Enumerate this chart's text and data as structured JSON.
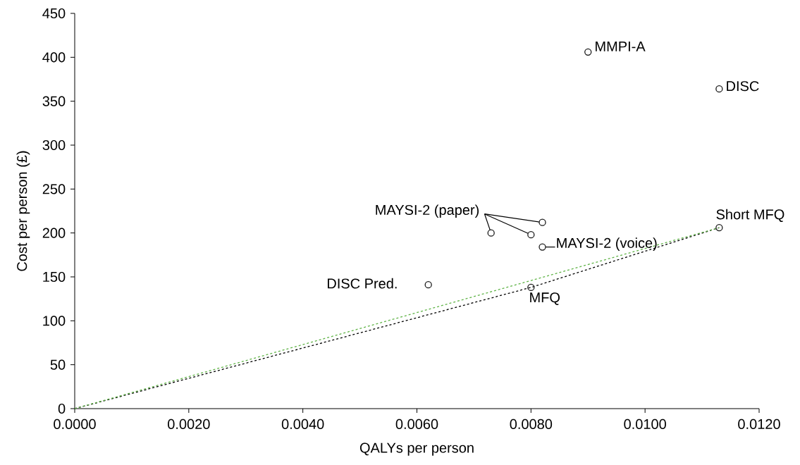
{
  "chart_data": {
    "type": "scatter",
    "xlabel": "QALYs per person",
    "ylabel": "Cost per person (£)",
    "xlim": [
      0,
      0.012
    ],
    "ylim": [
      0,
      450
    ],
    "xticks": [
      {
        "value": 0,
        "label": "0.0000"
      },
      {
        "value": 0.002,
        "label": "0.0020"
      },
      {
        "value": 0.004,
        "label": "0.0040"
      },
      {
        "value": 0.006,
        "label": "0.0060"
      },
      {
        "value": 0.008,
        "label": "0.0080"
      },
      {
        "value": 0.01,
        "label": "0.0100"
      },
      {
        "value": 0.012,
        "label": "0.0120"
      }
    ],
    "yticks": [
      0,
      50,
      100,
      150,
      200,
      250,
      300,
      350,
      400,
      450
    ],
    "marker": "circle",
    "series": [
      {
        "type": "line",
        "color": "#000000",
        "line_style": "dashed",
        "marker": "none",
        "x": [
          0,
          0.008,
          0.0113
        ],
        "values": [
          0,
          138,
          206
        ]
      },
      {
        "type": "line",
        "color": "#5fb346",
        "line_style": "dashed",
        "marker": "none",
        "x": [
          0,
          0.0113
        ],
        "values": [
          0,
          206
        ]
      },
      {
        "color": "#1a1a1a",
        "x": [
          0.009,
          0.0113,
          0.0113,
          0.0082,
          0.008,
          0.0062,
          0.0082,
          0.0073,
          0.008
        ],
        "values": [
          406,
          364,
          206,
          184,
          138,
          141,
          212,
          200,
          198
        ]
      }
    ],
    "annotations": [
      {
        "text": "MMPI-A",
        "x": 0.009,
        "y": 406
      },
      {
        "text": "DISC",
        "x": 0.0113,
        "y": 364
      },
      {
        "text": "Short MFQ",
        "x": 0.0113,
        "y": 206
      },
      {
        "text": "MAYSI-2 (voice)",
        "x": 0.0082,
        "y": 184
      },
      {
        "text": "MFQ",
        "x": 0.008,
        "y": 138
      },
      {
        "text": "DISC Pred.",
        "x": 0.0062,
        "y": 141
      },
      {
        "text": "MAYSI-2 (paper)",
        "x": 0.0082,
        "y": 212
      }
    ]
  }
}
